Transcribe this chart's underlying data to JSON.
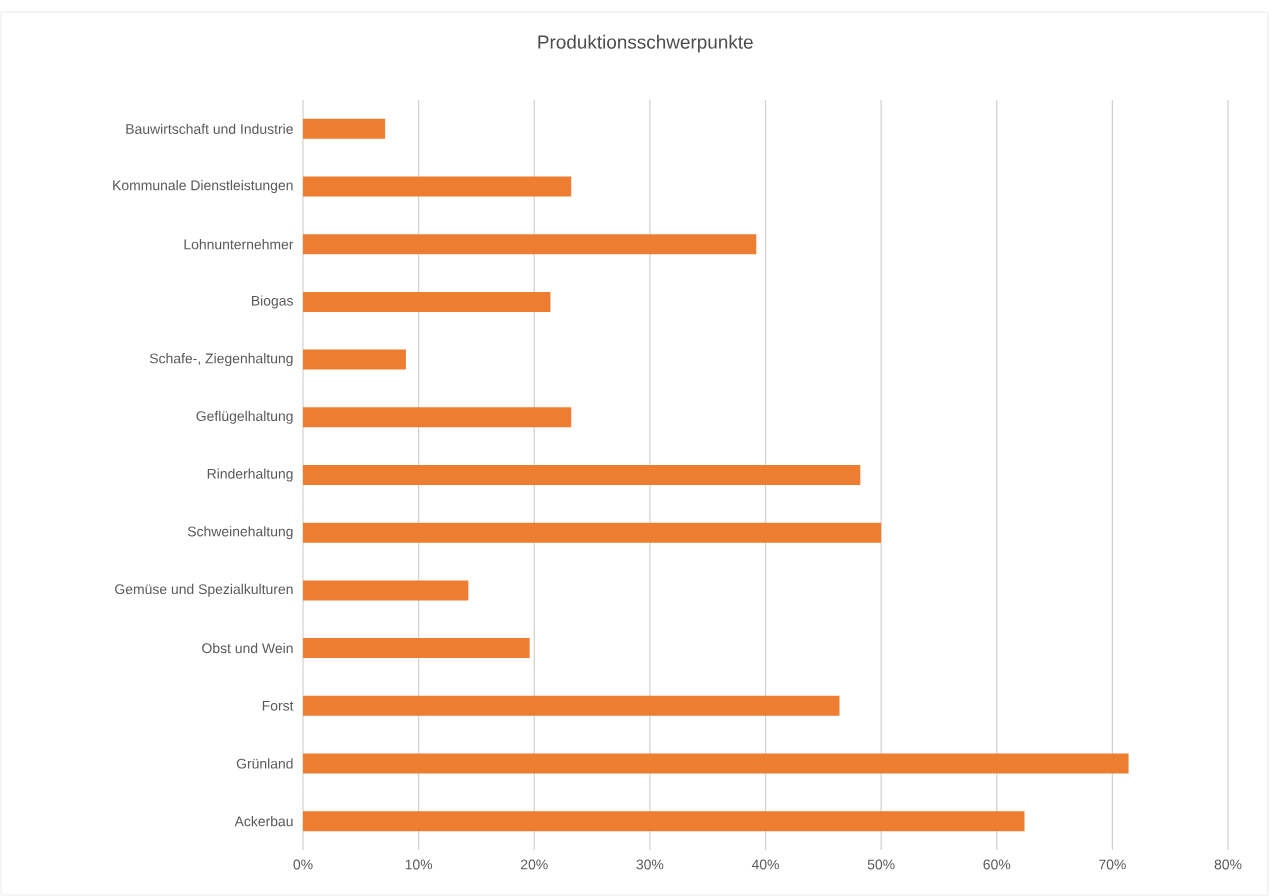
{
  "chart_data": {
    "type": "bar",
    "orientation": "horizontal",
    "title": "Produktionsschwerpunkte",
    "categories": [
      "Bauwirtschaft und Industrie",
      "Kommunale Dienstleistungen",
      "Lohnunternehmer",
      "Biogas",
      "Schafe-, Ziegenhaltung",
      "Geflügelhaltung",
      "Rinderhaltung",
      "Schweinehaltung",
      "Gemüse und Spezialkulturen",
      "Obst und Wein",
      "Forst",
      "Grünland",
      "Ackerbau"
    ],
    "values": [
      7.1,
      23.2,
      39.2,
      21.4,
      8.9,
      23.2,
      48.2,
      50.0,
      14.3,
      19.6,
      46.4,
      71.4,
      62.4
    ],
    "color": "#ed7d31",
    "xlim": [
      0,
      80
    ],
    "xticks": [
      {
        "value": 0,
        "label": "0%"
      },
      {
        "value": 10,
        "label": "10%"
      },
      {
        "value": 20,
        "label": "20%"
      },
      {
        "value": 30,
        "label": "30%"
      },
      {
        "value": 40,
        "label": "40%"
      },
      {
        "value": 50,
        "label": "50%"
      },
      {
        "value": 60,
        "label": "60%"
      },
      {
        "value": 70,
        "label": "70%"
      },
      {
        "value": 80,
        "label": "80%"
      }
    ],
    "grid": "x"
  }
}
